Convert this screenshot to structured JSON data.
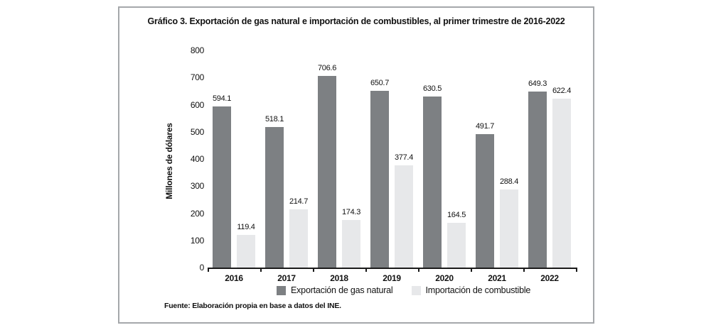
{
  "figure": {
    "source": "Fuente: Elaboración propia en base a datos del INE."
  },
  "colors": {
    "export_bar": "#7d8083",
    "import_bar": "#e7e8ea",
    "frame_border": "#a5a8ab",
    "axis": "#1a1a1a",
    "text": "#111111",
    "background": "#ffffff"
  },
  "chart_data": {
    "type": "bar",
    "title": "Gráfico 3. Exportación de gas natural e importación de combustibles, al primer trimestre de 2016-2022",
    "categories": [
      "2016",
      "2017",
      "2018",
      "2019",
      "2020",
      "2021",
      "2022"
    ],
    "series": [
      {
        "name": "Exportación de gas natural",
        "color": "#7d8083",
        "values": [
          594.1,
          518.1,
          706.6,
          650.7,
          630.5,
          491.7,
          649.3
        ]
      },
      {
        "name": "Importación de combustible",
        "color": "#e7e8ea",
        "values": [
          119.4,
          214.7,
          174.3,
          377.4,
          164.5,
          288.4,
          622.4
        ]
      }
    ],
    "value_labels": [
      "594.1",
      "518.1",
      "706.6",
      "650.7",
      "630.5",
      "491.7",
      "649.3",
      "119.4",
      "214.7",
      "174.3",
      "377.4",
      "164.5",
      "288.4",
      "622.4"
    ],
    "xlabel": "",
    "ylabel": "Millones de dólares",
    "ylim": [
      0,
      800
    ],
    "yticks": [
      0,
      100,
      200,
      300,
      400,
      500,
      600,
      700,
      800
    ],
    "grid": false,
    "legend_position": "bottom",
    "source": "Fuente: Elaboración propia en base a datos del INE."
  }
}
